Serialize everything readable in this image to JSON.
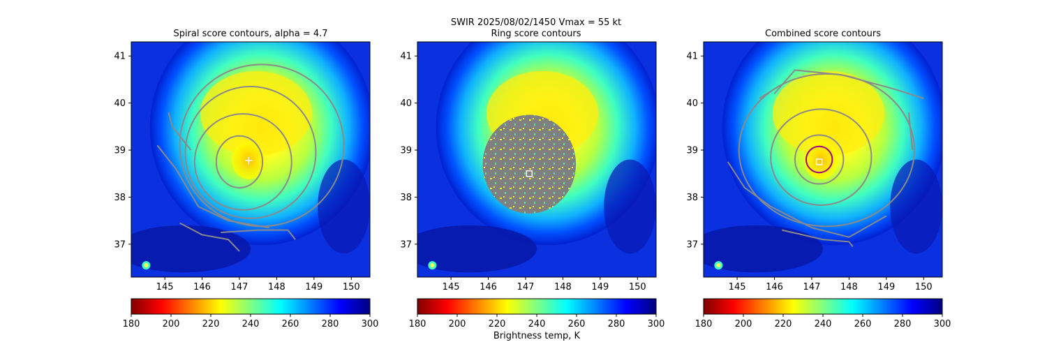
{
  "suptitle": {
    "line1": "SWIR  2025/08/02/1450    Vmax = 55 kt",
    "line2": "Ring score contours"
  },
  "colormap": {
    "name": "jet_r",
    "stops": [
      "#800000",
      "#ff0000",
      "#ff8000",
      "#ffff00",
      "#80ff80",
      "#00ffff",
      "#0080ff",
      "#0000ff",
      "#000080"
    ]
  },
  "colorbar": {
    "label": "Brightness temp, K",
    "ticks": [
      "180",
      "200",
      "220",
      "240",
      "260",
      "280",
      "300"
    ],
    "range": [
      180,
      300
    ]
  },
  "chart_data": [
    {
      "type": "heatmap",
      "title": "Spiral score contours, alpha =  4.7",
      "xlim": [
        144.1,
        150.5
      ],
      "ylim": [
        36.3,
        41.3
      ],
      "xticks": [
        "145",
        "146",
        "147",
        "148",
        "149",
        "150"
      ],
      "yticks": [
        "37",
        "38",
        "39",
        "40",
        "41"
      ],
      "center_lon": 147.25,
      "center_lat": 38.78,
      "marker": {
        "type": "plus",
        "lon": 147.25,
        "lat": 38.78,
        "color": "#ffffff"
      },
      "contours": [
        {
          "type": "ellipse",
          "lon": 147.0,
          "lat": 38.75,
          "rx": 0.62,
          "ry": 0.55
        },
        {
          "type": "ellipse",
          "lon": 147.1,
          "lat": 38.75,
          "rx": 1.3,
          "ry": 1.02
        },
        {
          "type": "ellipse",
          "lon": 147.3,
          "lat": 38.95,
          "rx": 1.75,
          "ry": 1.4
        },
        {
          "type": "ellipse",
          "lon": 147.6,
          "lat": 39.1,
          "rx": 2.2,
          "ry": 1.72
        },
        {
          "type": "line",
          "pts": [
            [
              145.1,
              39.8
            ],
            [
              145.2,
              39.5
            ],
            [
              145.7,
              39.0
            ]
          ]
        },
        {
          "type": "line",
          "pts": [
            [
              144.8,
              39.1
            ],
            [
              145.3,
              38.6
            ],
            [
              145.9,
              37.8
            ],
            [
              146.7,
              37.5
            ],
            [
              147.8,
              37.35
            ]
          ]
        },
        {
          "type": "line",
          "pts": [
            [
              145.4,
              37.45
            ],
            [
              146.0,
              37.2
            ],
            [
              146.7,
              37.1
            ],
            [
              147.0,
              36.85
            ]
          ]
        },
        {
          "type": "line",
          "pts": [
            [
              146.5,
              37.25
            ],
            [
              147.5,
              37.3
            ],
            [
              148.3,
              37.3
            ],
            [
              148.5,
              37.1
            ]
          ]
        }
      ]
    },
    {
      "type": "heatmap",
      "title": "",
      "xlim": [
        144.1,
        150.5
      ],
      "ylim": [
        36.3,
        41.3
      ],
      "xticks": [
        "145",
        "146",
        "147",
        "148",
        "149",
        "150"
      ],
      "yticks": [
        "37",
        "38",
        "39",
        "40",
        "41"
      ],
      "center_lon": 147.25,
      "center_lat": 38.78,
      "ring_mask": {
        "lon": 147.1,
        "lat": 38.7,
        "rx": 1.25,
        "ry": 1.05,
        "color": "#808080"
      },
      "marker": {
        "type": "square",
        "lon": 147.1,
        "lat": 38.5,
        "color": "#ffffff"
      },
      "contours": []
    },
    {
      "type": "heatmap",
      "title": "Combined score contours",
      "xlim": [
        144.1,
        150.5
      ],
      "ylim": [
        36.3,
        41.3
      ],
      "xticks": [
        "145",
        "146",
        "147",
        "148",
        "149",
        "150"
      ],
      "yticks": [
        "37",
        "38",
        "39",
        "40",
        "41"
      ],
      "center_lon": 147.25,
      "center_lat": 38.78,
      "marker": {
        "type": "square",
        "lon": 147.2,
        "lat": 38.75,
        "color": "#ffffff"
      },
      "circle": {
        "lon": 147.2,
        "lat": 38.8,
        "r": 0.35,
        "color": "#a0007a"
      },
      "contours": [
        {
          "type": "ellipse",
          "lon": 147.2,
          "lat": 38.8,
          "rx": 0.65,
          "ry": 0.52
        },
        {
          "type": "ellipse",
          "lon": 147.25,
          "lat": 38.85,
          "rx": 1.35,
          "ry": 1.02
        },
        {
          "type": "ellipse",
          "lon": 147.4,
          "lat": 39.0,
          "rx": 2.35,
          "ry": 1.62
        },
        {
          "type": "line",
          "pts": [
            [
              146.0,
              40.2
            ],
            [
              146.55,
              40.7
            ],
            [
              147.8,
              40.6
            ],
            [
              149.2,
              40.3
            ],
            [
              150.0,
              40.1
            ]
          ]
        },
        {
          "type": "line",
          "pts": [
            [
              145.6,
              40.1
            ],
            [
              145.9,
              40.25
            ]
          ]
        },
        {
          "type": "line",
          "pts": [
            [
              149.6,
              39.8
            ],
            [
              149.7,
              39.0
            ]
          ]
        },
        {
          "type": "line",
          "pts": [
            [
              144.75,
              38.75
            ],
            [
              145.2,
              38.2
            ],
            [
              145.9,
              37.8
            ],
            [
              147.0,
              37.35
            ],
            [
              148.0,
              37.15
            ],
            [
              149.0,
              37.6
            ]
          ]
        },
        {
          "type": "line",
          "pts": [
            [
              146.2,
              37.3
            ],
            [
              147.3,
              37.1
            ],
            [
              148.0,
              37.05
            ],
            [
              148.1,
              36.95
            ]
          ]
        }
      ]
    }
  ]
}
